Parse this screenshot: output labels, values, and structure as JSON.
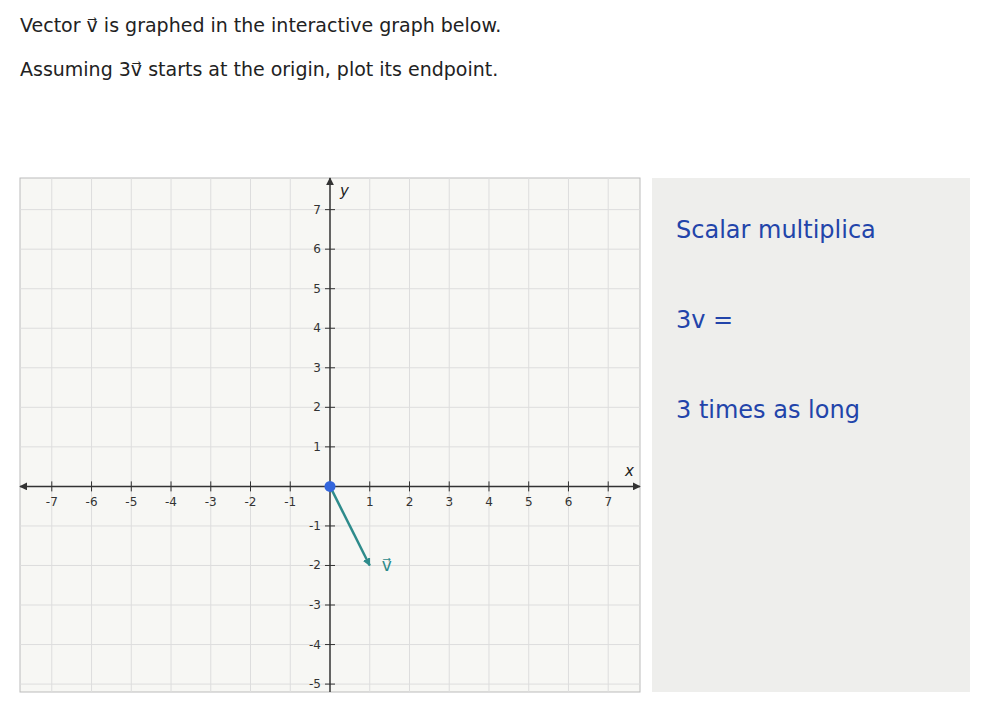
{
  "chart_data": {
    "type": "vector",
    "title": "Vector v⃗ is graphed in the interactive graph below.",
    "subtitle": "Assuming 3v⃗ starts at the origin, plot its endpoint.",
    "x_label": "x",
    "y_label": "y",
    "xlim": [
      -7.8,
      7.8
    ],
    "ylim": [
      -5.2,
      7.8
    ],
    "xticks": [
      -7,
      -6,
      -5,
      -4,
      -3,
      -2,
      -1,
      1,
      2,
      3,
      4,
      5,
      6,
      7
    ],
    "yticks": [
      -5,
      -4,
      -3,
      -2,
      -1,
      1,
      2,
      3,
      4,
      5,
      6,
      7
    ],
    "grid": true,
    "series": [
      {
        "name": "v⃗",
        "type": "vector",
        "color": "#2e8b8b",
        "x": [
          0,
          1
        ],
        "values": [
          0,
          -2
        ]
      },
      {
        "type": "scatter",
        "color": "#3366dd",
        "x": [
          0
        ],
        "values": [
          0
        ]
      }
    ],
    "annotations": [
      "Scalar multiplica",
      "3v =",
      "3 times as long"
    ]
  }
}
